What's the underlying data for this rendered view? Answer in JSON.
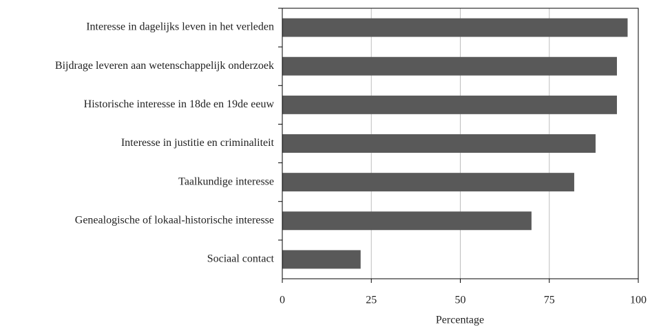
{
  "chart_data": {
    "type": "bar",
    "orientation": "horizontal",
    "categories": [
      "Interesse in dagelijks leven in het verleden",
      "Bijdrage leveren aan wetenschappelijk onderzoek",
      "Historische interesse in 18de en 19de eeuw",
      "Interesse in justitie en criminaliteit",
      "Taalkundige interesse",
      "Genealogische of lokaal-historische interesse",
      "Sociaal contact"
    ],
    "values": [
      97,
      94,
      94,
      88,
      82,
      70,
      22
    ],
    "color": "#595959",
    "xlabel": "Percentage",
    "xlim": [
      0,
      100
    ],
    "xticks": [
      0,
      25,
      50,
      75,
      100
    ],
    "grid": true
  }
}
